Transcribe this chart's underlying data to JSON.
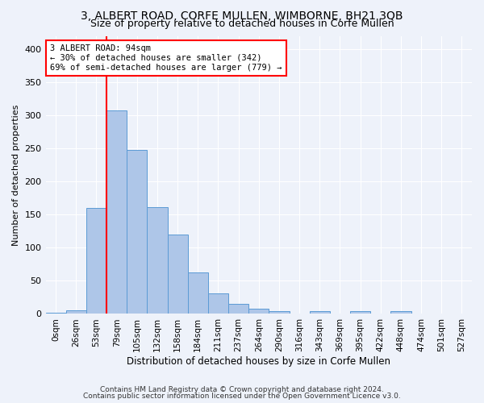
{
  "title": "3, ALBERT ROAD, CORFE MULLEN, WIMBORNE, BH21 3QB",
  "subtitle": "Size of property relative to detached houses in Corfe Mullen",
  "xlabel": "Distribution of detached houses by size in Corfe Mullen",
  "ylabel": "Number of detached properties",
  "footnote1": "Contains HM Land Registry data © Crown copyright and database right 2024.",
  "footnote2": "Contains public sector information licensed under the Open Government Licence v3.0.",
  "bar_labels": [
    "0sqm",
    "26sqm",
    "53sqm",
    "79sqm",
    "105sqm",
    "132sqm",
    "158sqm",
    "184sqm",
    "211sqm",
    "237sqm",
    "264sqm",
    "290sqm",
    "316sqm",
    "343sqm",
    "369sqm",
    "395sqm",
    "422sqm",
    "448sqm",
    "474sqm",
    "501sqm",
    "527sqm"
  ],
  "bar_heights": [
    2,
    5,
    160,
    308,
    248,
    162,
    120,
    63,
    31,
    15,
    8,
    4,
    0,
    4,
    0,
    4,
    0,
    4,
    0,
    0,
    0
  ],
  "bar_color": "#AEC6E8",
  "bar_edge_color": "#5B9BD5",
  "ylim": [
    0,
    420
  ],
  "yticks": [
    0,
    50,
    100,
    150,
    200,
    250,
    300,
    350,
    400
  ],
  "annotation_text": "3 ALBERT ROAD: 94sqm\n← 30% of detached houses are smaller (342)\n69% of semi-detached houses are larger (779) →",
  "annotation_box_color": "white",
  "annotation_border_color": "red",
  "vline_color": "red",
  "background_color": "#EEF2FA",
  "grid_color": "#FFFFFF",
  "title_fontsize": 10,
  "subtitle_fontsize": 9,
  "xlabel_fontsize": 8.5,
  "ylabel_fontsize": 8,
  "footnote_fontsize": 6.5
}
